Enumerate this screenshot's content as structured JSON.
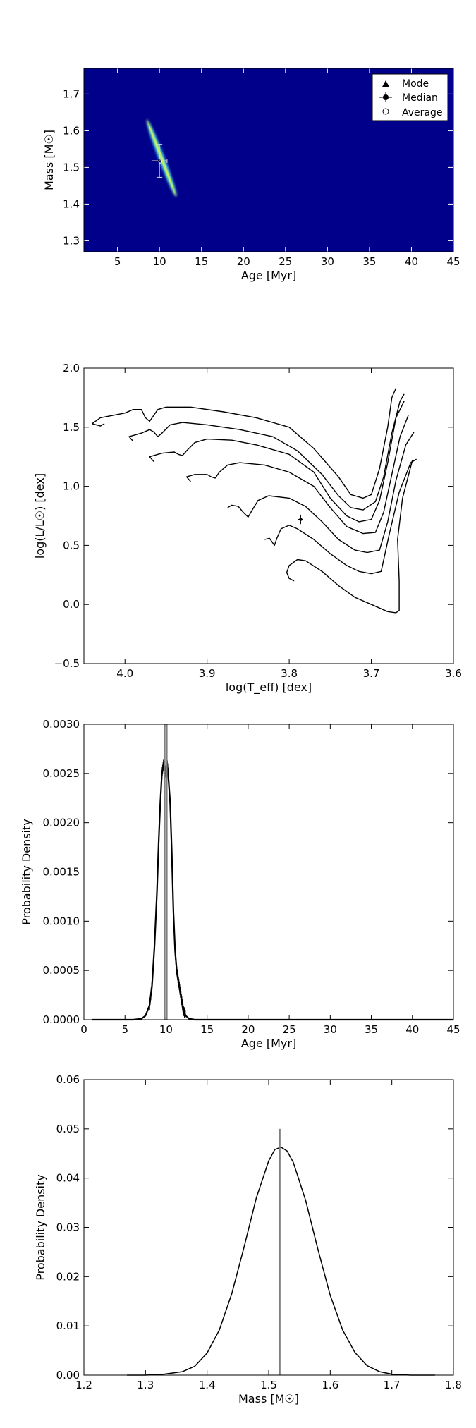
{
  "chart_data": [
    {
      "type": "heatmap",
      "xlabel": "Age [Myr]",
      "ylabel": "Mass [M☉]",
      "xlim": [
        1,
        45
      ],
      "ylim": [
        1.27,
        1.77
      ],
      "xticks": [
        "5",
        "10",
        "15",
        "20",
        "25",
        "30",
        "35",
        "40",
        "45"
      ],
      "yticks": [
        "1.3",
        "1.4",
        "1.5",
        "1.6",
        "1.7"
      ],
      "background_color": "#00008b",
      "ridge": {
        "from": [
          8.5,
          1.63
        ],
        "to": [
          12.0,
          1.42
        ],
        "colors": [
          "#2a6fff",
          "#36e0d8",
          "#c8f060",
          "#36e0d8",
          "#2a6fff"
        ]
      },
      "legend": {
        "position": "top-right",
        "entries": [
          "Mode",
          "Median",
          "Average"
        ]
      },
      "estimate": {
        "age": 10.0,
        "mass": 1.518,
        "age_err": 0.9,
        "mass_err": 0.045
      }
    },
    {
      "type": "line",
      "xlabel": "log(T_eff) [dex]",
      "ylabel": "log(L/L☉) [dex]",
      "xlim": [
        4.05,
        3.6
      ],
      "ylim": [
        -0.5,
        2.0
      ],
      "xticks": [
        "4.0",
        "3.9",
        "3.8",
        "3.7",
        "3.6"
      ],
      "yticks": [
        "−0.5",
        "0.0",
        "0.5",
        "1.0",
        "1.5",
        "2.0"
      ],
      "series": [
        {
          "values": [
            [
              4.025,
              1.53
            ],
            [
              4.03,
              1.51
            ],
            [
              4.04,
              1.53
            ],
            [
              4.03,
              1.58
            ],
            [
              4.0,
              1.62
            ],
            [
              3.99,
              1.65
            ],
            [
              3.98,
              1.65
            ],
            [
              3.975,
              1.58
            ],
            [
              3.97,
              1.55
            ],
            [
              3.965,
              1.6
            ],
            [
              3.96,
              1.65
            ],
            [
              3.95,
              1.67
            ],
            [
              3.92,
              1.67
            ],
            [
              3.88,
              1.63
            ],
            [
              3.84,
              1.58
            ],
            [
              3.8,
              1.5
            ],
            [
              3.77,
              1.32
            ],
            [
              3.74,
              1.08
            ],
            [
              3.725,
              0.93
            ],
            [
              3.71,
              0.9
            ],
            [
              3.7,
              0.93
            ],
            [
              3.69,
              1.15
            ],
            [
              3.68,
              1.5
            ],
            [
              3.675,
              1.75
            ],
            [
              3.67,
              1.83
            ]
          ]
        },
        {
          "values": [
            [
              3.99,
              1.38
            ],
            [
              3.995,
              1.42
            ],
            [
              3.98,
              1.45
            ],
            [
              3.97,
              1.48
            ],
            [
              3.965,
              1.46
            ],
            [
              3.96,
              1.42
            ],
            [
              3.955,
              1.45
            ],
            [
              3.945,
              1.52
            ],
            [
              3.93,
              1.54
            ],
            [
              3.9,
              1.52
            ],
            [
              3.86,
              1.48
            ],
            [
              3.82,
              1.42
            ],
            [
              3.79,
              1.3
            ],
            [
              3.76,
              1.1
            ],
            [
              3.74,
              0.92
            ],
            [
              3.725,
              0.82
            ],
            [
              3.71,
              0.8
            ],
            [
              3.695,
              0.87
            ],
            [
              3.685,
              1.08
            ],
            [
              3.675,
              1.45
            ],
            [
              3.665,
              1.72
            ],
            [
              3.66,
              1.78
            ]
          ]
        },
        {
          "values": [
            [
              3.965,
              1.21
            ],
            [
              3.97,
              1.25
            ],
            [
              3.955,
              1.28
            ],
            [
              3.94,
              1.29
            ],
            [
              3.935,
              1.27
            ],
            [
              3.93,
              1.26
            ],
            [
              3.925,
              1.3
            ],
            [
              3.915,
              1.37
            ],
            [
              3.9,
              1.4
            ],
            [
              3.87,
              1.39
            ],
            [
              3.84,
              1.35
            ],
            [
              3.8,
              1.27
            ],
            [
              3.77,
              1.12
            ],
            [
              3.75,
              0.9
            ],
            [
              3.73,
              0.75
            ],
            [
              3.715,
              0.7
            ],
            [
              3.7,
              0.72
            ],
            [
              3.69,
              0.88
            ],
            [
              3.68,
              1.2
            ],
            [
              3.67,
              1.58
            ],
            [
              3.66,
              1.72
            ]
          ]
        },
        {
          "values": [
            [
              3.92,
              1.04
            ],
            [
              3.925,
              1.08
            ],
            [
              3.915,
              1.1
            ],
            [
              3.9,
              1.1
            ],
            [
              3.895,
              1.08
            ],
            [
              3.89,
              1.07
            ],
            [
              3.885,
              1.12
            ],
            [
              3.875,
              1.18
            ],
            [
              3.86,
              1.2
            ],
            [
              3.83,
              1.18
            ],
            [
              3.8,
              1.12
            ],
            [
              3.77,
              1.0
            ],
            [
              3.75,
              0.82
            ],
            [
              3.73,
              0.66
            ],
            [
              3.71,
              0.6
            ],
            [
              3.695,
              0.61
            ],
            [
              3.685,
              0.78
            ],
            [
              3.675,
              1.1
            ],
            [
              3.665,
              1.42
            ],
            [
              3.655,
              1.6
            ]
          ]
        },
        {
          "values": [
            [
              3.875,
              0.82
            ],
            [
              3.87,
              0.84
            ],
            [
              3.862,
              0.83
            ],
            [
              3.856,
              0.78
            ],
            [
              3.85,
              0.74
            ],
            [
              3.845,
              0.8
            ],
            [
              3.838,
              0.88
            ],
            [
              3.825,
              0.92
            ],
            [
              3.8,
              0.9
            ],
            [
              3.78,
              0.83
            ],
            [
              3.76,
              0.7
            ],
            [
              3.74,
              0.55
            ],
            [
              3.72,
              0.46
            ],
            [
              3.705,
              0.44
            ],
            [
              3.69,
              0.46
            ],
            [
              3.68,
              0.7
            ],
            [
              3.67,
              1.05
            ],
            [
              3.658,
              1.35
            ],
            [
              3.648,
              1.46
            ]
          ]
        },
        {
          "values": [
            [
              3.83,
              0.55
            ],
            [
              3.824,
              0.56
            ],
            [
              3.818,
              0.5
            ],
            [
              3.815,
              0.56
            ],
            [
              3.81,
              0.64
            ],
            [
              3.8,
              0.67
            ],
            [
              3.79,
              0.64
            ],
            [
              3.77,
              0.55
            ],
            [
              3.75,
              0.43
            ],
            [
              3.73,
              0.33
            ],
            [
              3.715,
              0.28
            ],
            [
              3.7,
              0.26
            ],
            [
              3.688,
              0.28
            ],
            [
              3.678,
              0.6
            ],
            [
              3.666,
              0.95
            ],
            [
              3.652,
              1.2
            ],
            [
              3.645,
              1.23
            ]
          ]
        },
        {
          "values": [
            [
              3.794,
              0.2
            ],
            [
              3.8,
              0.22
            ],
            [
              3.803,
              0.27
            ],
            [
              3.8,
              0.33
            ],
            [
              3.79,
              0.38
            ],
            [
              3.78,
              0.37
            ],
            [
              3.76,
              0.28
            ],
            [
              3.74,
              0.16
            ],
            [
              3.72,
              0.06
            ],
            [
              3.7,
              0.0
            ],
            [
              3.68,
              -0.06
            ],
            [
              3.67,
              -0.07
            ],
            [
              3.666,
              -0.05
            ],
            [
              3.666,
              0.2
            ],
            [
              3.668,
              0.55
            ],
            [
              3.662,
              0.9
            ],
            [
              3.65,
              1.22
            ]
          ]
        }
      ],
      "point": {
        "x": 3.786,
        "y": 0.72,
        "yerr": 0.04,
        "xerr": 0.003
      }
    },
    {
      "type": "line",
      "xlabel": "Age [Myr]",
      "ylabel": "Probability Density",
      "xlim": [
        0,
        45
      ],
      "ylim": [
        0,
        0.003
      ],
      "xticks": [
        "0",
        "5",
        "10",
        "15",
        "20",
        "25",
        "30",
        "35",
        "40",
        "45"
      ],
      "yticks": [
        "0.0000",
        "0.0005",
        "0.0010",
        "0.0015",
        "0.0020",
        "0.0025",
        "0.0030"
      ],
      "x": [
        1,
        5,
        6,
        7,
        7.5,
        8,
        8.3,
        8.6,
        8.9,
        9.1,
        9.3,
        9.5,
        9.7,
        9.85,
        10.0,
        10.15,
        10.3,
        10.5,
        10.7,
        10.9,
        11.1,
        11.3,
        11.5,
        11.7,
        11.9,
        12.1,
        12.4,
        12.8,
        13.5,
        15,
        20,
        30,
        45
      ],
      "values": [
        0,
        0,
        0,
        1e-05,
        4e-05,
        0.00015,
        0.00035,
        0.00075,
        0.0013,
        0.0018,
        0.0022,
        0.0025,
        0.0026,
        0.00255,
        0.0025,
        0.0026,
        0.00245,
        0.0022,
        0.0017,
        0.0011,
        0.0007,
        0.0005,
        0.0004,
        0.0003,
        0.0002,
        0.0001,
        4e-05,
        1e-05,
        0,
        0,
        0,
        0,
        0
      ],
      "vlines": [
        9.85,
        10.1
      ]
    },
    {
      "type": "line",
      "xlabel": "Mass [M☉]",
      "ylabel": "Probability Density",
      "xlim": [
        1.2,
        1.8
      ],
      "ylim": [
        0,
        0.06
      ],
      "xticks": [
        "1.2",
        "1.3",
        "1.4",
        "1.5",
        "1.6",
        "1.7",
        "1.8"
      ],
      "yticks": [
        "0.00",
        "0.01",
        "0.02",
        "0.03",
        "0.04",
        "0.05",
        "0.06"
      ],
      "x": [
        1.27,
        1.3,
        1.33,
        1.36,
        1.38,
        1.4,
        1.42,
        1.44,
        1.46,
        1.48,
        1.5,
        1.51,
        1.52,
        1.53,
        1.54,
        1.56,
        1.58,
        1.6,
        1.62,
        1.64,
        1.66,
        1.68,
        1.7,
        1.73,
        1.77
      ],
      "values": [
        0,
        0,
        0.0002,
        0.0007,
        0.0018,
        0.0045,
        0.0092,
        0.0165,
        0.026,
        0.036,
        0.0435,
        0.0458,
        0.0463,
        0.0455,
        0.0432,
        0.0355,
        0.0255,
        0.0162,
        0.0092,
        0.0046,
        0.0019,
        0.0007,
        0.0002,
        0,
        0
      ],
      "vlines": [
        1.518,
        1.518
      ]
    }
  ]
}
